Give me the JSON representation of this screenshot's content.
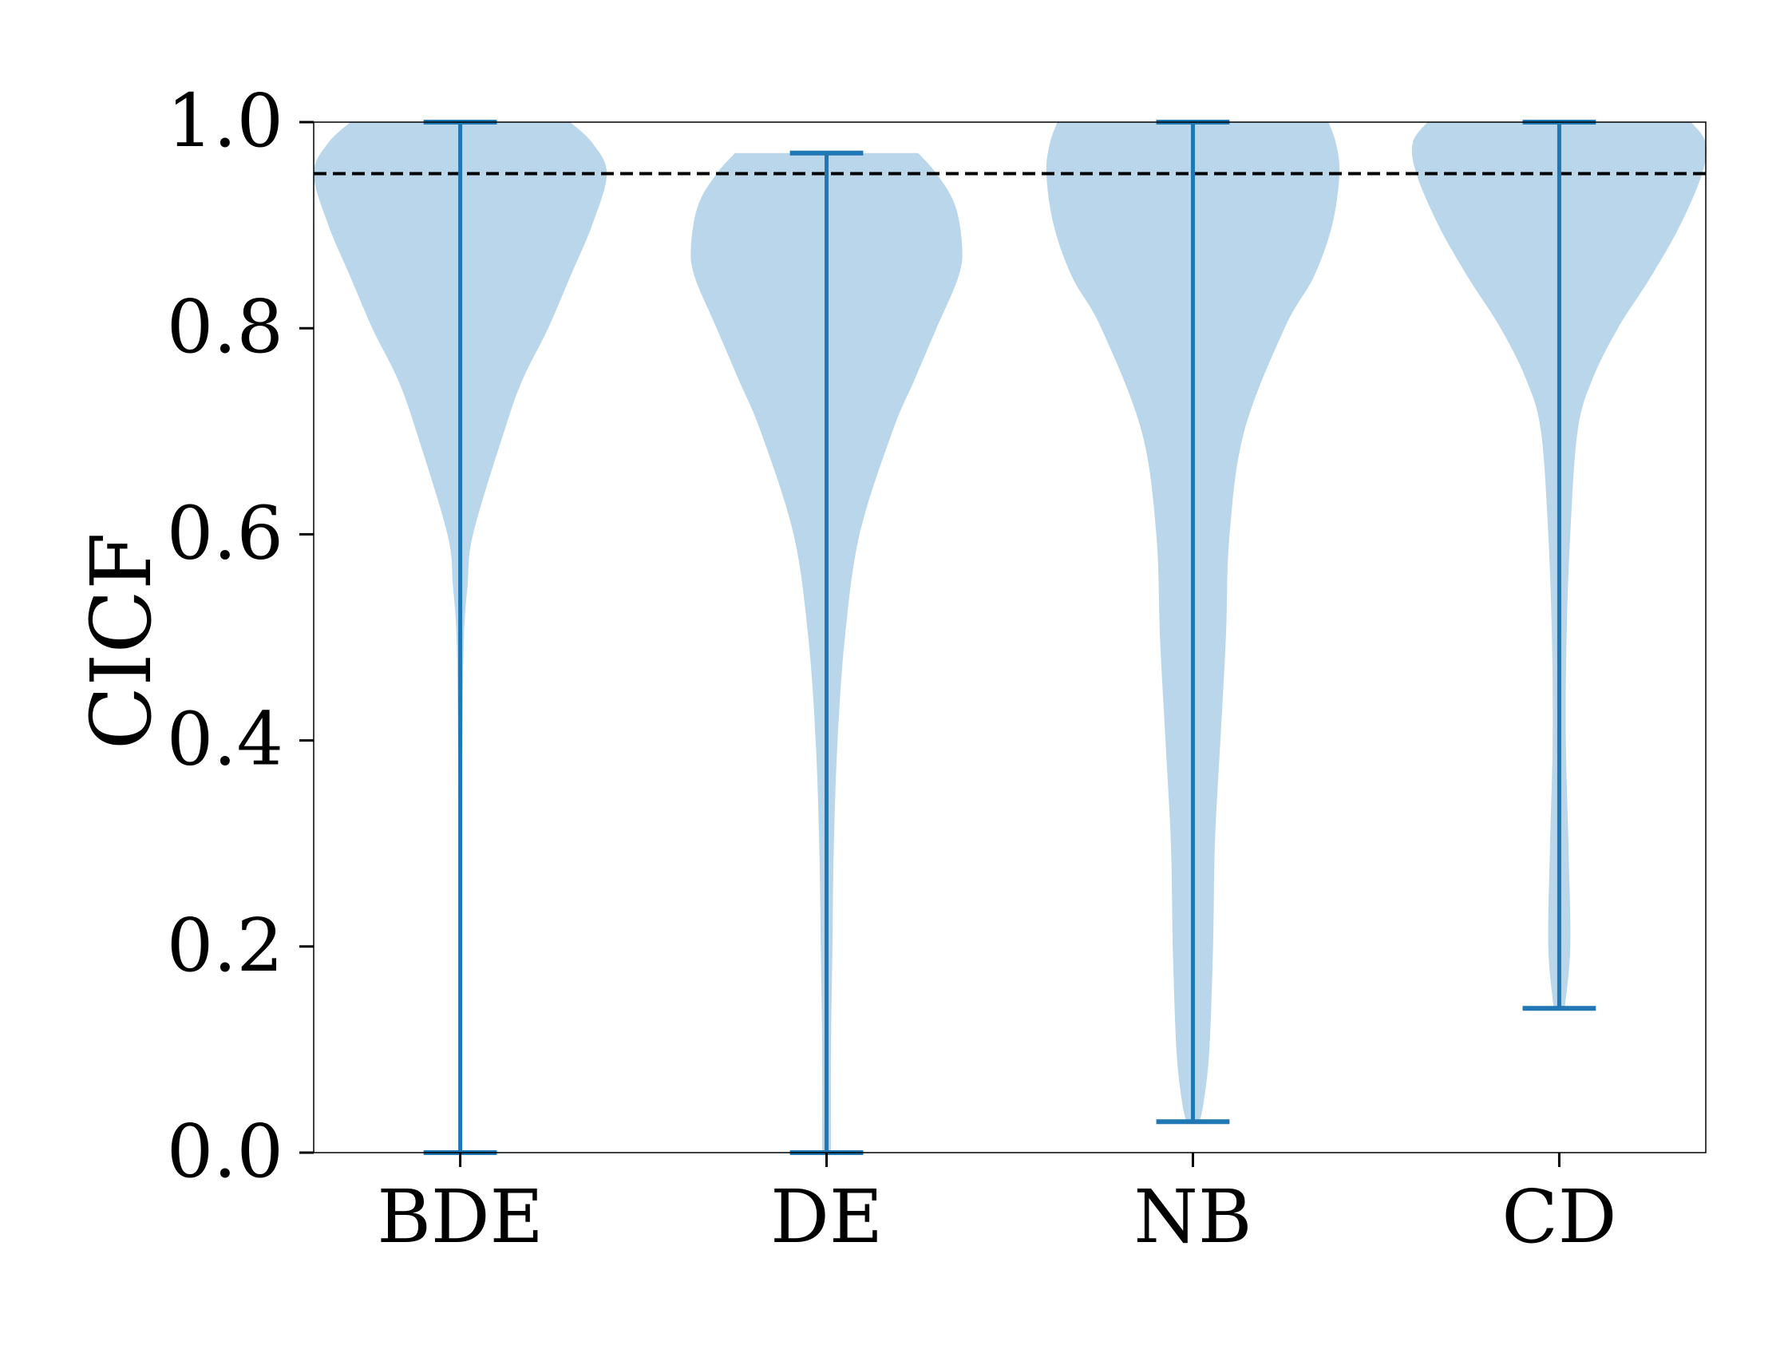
{
  "chart_data": {
    "type": "violin",
    "ylabel": "CICF",
    "xlabel": "",
    "title": "",
    "categories": [
      "BDE",
      "DE",
      "NB",
      "CD"
    ],
    "ylim": [
      0.0,
      1.0
    ],
    "yticks": [
      0.0,
      0.2,
      0.4,
      0.6,
      0.8,
      1.0
    ],
    "ytick_labels": [
      "0.0",
      "0.2",
      "0.4",
      "0.6",
      "0.8",
      "1.0"
    ],
    "reference_line": {
      "y": 0.95,
      "style": "dashed",
      "color": "#000000"
    },
    "colors": {
      "body": "#bad6ea",
      "lines": "#1f77b4"
    },
    "violins": [
      {
        "category": "BDE",
        "min": 0.0,
        "max": 1.0,
        "profile": [
          [
            0.0,
            0.004
          ],
          [
            0.2,
            0.004
          ],
          [
            0.3,
            0.004
          ],
          [
            0.4,
            0.006
          ],
          [
            0.5,
            0.01
          ],
          [
            0.55,
            0.02
          ],
          [
            0.6,
            0.035
          ],
          [
            0.7,
            0.12
          ],
          [
            0.75,
            0.17
          ],
          [
            0.8,
            0.24
          ],
          [
            0.85,
            0.3
          ],
          [
            0.9,
            0.36
          ],
          [
            0.95,
            0.4
          ],
          [
            0.98,
            0.36
          ],
          [
            1.0,
            0.3
          ]
        ]
      },
      {
        "category": "DE",
        "min": 0.0,
        "max": 0.97,
        "profile": [
          [
            0.0,
            0.012
          ],
          [
            0.1,
            0.012
          ],
          [
            0.2,
            0.016
          ],
          [
            0.3,
            0.02
          ],
          [
            0.4,
            0.03
          ],
          [
            0.5,
            0.05
          ],
          [
            0.6,
            0.09
          ],
          [
            0.7,
            0.18
          ],
          [
            0.75,
            0.24
          ],
          [
            0.8,
            0.3
          ],
          [
            0.85,
            0.36
          ],
          [
            0.88,
            0.37
          ],
          [
            0.92,
            0.35
          ],
          [
            0.95,
            0.3
          ],
          [
            0.97,
            0.25
          ]
        ]
      },
      {
        "category": "NB",
        "min": 0.03,
        "max": 1.0,
        "profile": [
          [
            0.03,
            0.018
          ],
          [
            0.05,
            0.03
          ],
          [
            0.1,
            0.045
          ],
          [
            0.2,
            0.055
          ],
          [
            0.3,
            0.06
          ],
          [
            0.4,
            0.075
          ],
          [
            0.5,
            0.09
          ],
          [
            0.6,
            0.1
          ],
          [
            0.7,
            0.14
          ],
          [
            0.8,
            0.25
          ],
          [
            0.85,
            0.33
          ],
          [
            0.9,
            0.38
          ],
          [
            0.95,
            0.4
          ],
          [
            0.98,
            0.39
          ],
          [
            1.0,
            0.37
          ]
        ]
      },
      {
        "category": "CD",
        "min": 0.14,
        "max": 1.0,
        "profile": [
          [
            0.14,
            0.015
          ],
          [
            0.2,
            0.03
          ],
          [
            0.3,
            0.025
          ],
          [
            0.4,
            0.018
          ],
          [
            0.5,
            0.02
          ],
          [
            0.6,
            0.03
          ],
          [
            0.7,
            0.05
          ],
          [
            0.75,
            0.09
          ],
          [
            0.8,
            0.16
          ],
          [
            0.85,
            0.25
          ],
          [
            0.9,
            0.33
          ],
          [
            0.95,
            0.39
          ],
          [
            0.98,
            0.4
          ],
          [
            1.0,
            0.36
          ]
        ]
      }
    ]
  }
}
